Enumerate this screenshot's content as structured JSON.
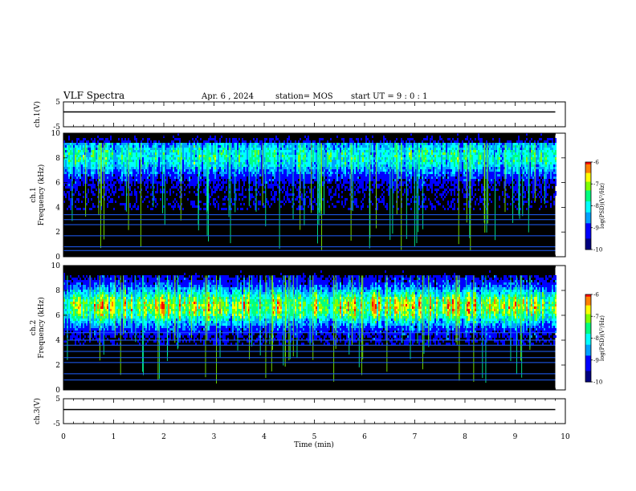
{
  "header": {
    "title": "VLF Spectra",
    "date": "Apr. 6 , 2024",
    "station": "station= MOS",
    "start_ut": "start UT =  9 : 0 : 1"
  },
  "chart_data": [
    {
      "type": "line",
      "panel": "ch1-voltage",
      "ylabel": "ch.1(V)",
      "xlim": [
        0,
        10
      ],
      "ylim": [
        -5,
        5
      ],
      "yticks": [
        "5",
        "-5"
      ],
      "series": [
        {
          "x": [
            0,
            9.8
          ],
          "y": [
            0,
            0
          ]
        }
      ]
    },
    {
      "type": "heatmap",
      "panel": "ch1-spectrogram",
      "ylabel": "ch.1\nFrequency (kHz)",
      "xlim": [
        0,
        10
      ],
      "ylim": [
        0,
        10
      ],
      "yticks": [
        "0",
        "2",
        "4",
        "6",
        "8",
        "10"
      ],
      "data_extent_x": [
        0,
        9.8
      ],
      "band_center_khz": 8.2,
      "band_intensity": 0.5,
      "colorbar": {
        "label": "log(PSD)(V²/Hz)",
        "ticks": [
          "-6",
          "-7",
          "-8",
          "-9",
          "-10"
        ],
        "range": [
          -10,
          -6
        ]
      }
    },
    {
      "type": "heatmap",
      "panel": "ch2-spectrogram",
      "ylabel": "ch.2\nFrequency (kHz)",
      "xlim": [
        0,
        10
      ],
      "ylim": [
        0,
        10
      ],
      "yticks": [
        "0",
        "2",
        "4",
        "6",
        "8",
        "10"
      ],
      "data_extent_x": [
        0,
        9.8
      ],
      "band_center_khz": 6.8,
      "band_intensity": 0.75,
      "colorbar": {
        "label": "log(PSD)(V²/Hz)",
        "ticks": [
          "-6",
          "-7",
          "-8",
          "-9",
          "-10"
        ],
        "range": [
          -10,
          -6
        ]
      }
    },
    {
      "type": "line",
      "panel": "ch3-voltage",
      "ylabel": "ch.3(V)",
      "xlim": [
        0,
        10
      ],
      "ylim": [
        -5,
        5
      ],
      "yticks": [
        "5",
        "-5"
      ],
      "series": [
        {
          "x": [
            0,
            9.8
          ],
          "y": [
            0,
            0
          ]
        }
      ]
    }
  ],
  "x_axis": {
    "label": "Time (min)",
    "ticks": [
      "0",
      "1",
      "2",
      "3",
      "4",
      "5",
      "6",
      "7",
      "8",
      "9",
      "10"
    ]
  },
  "colors": {
    "background": "#000000",
    "trace": "#000000",
    "colormap": [
      "#000080",
      "#0000ff",
      "#00a0ff",
      "#00ffff",
      "#00ff80",
      "#80ff00",
      "#ffff00",
      "#ff8000",
      "#ff0000",
      "#ffffff"
    ]
  }
}
